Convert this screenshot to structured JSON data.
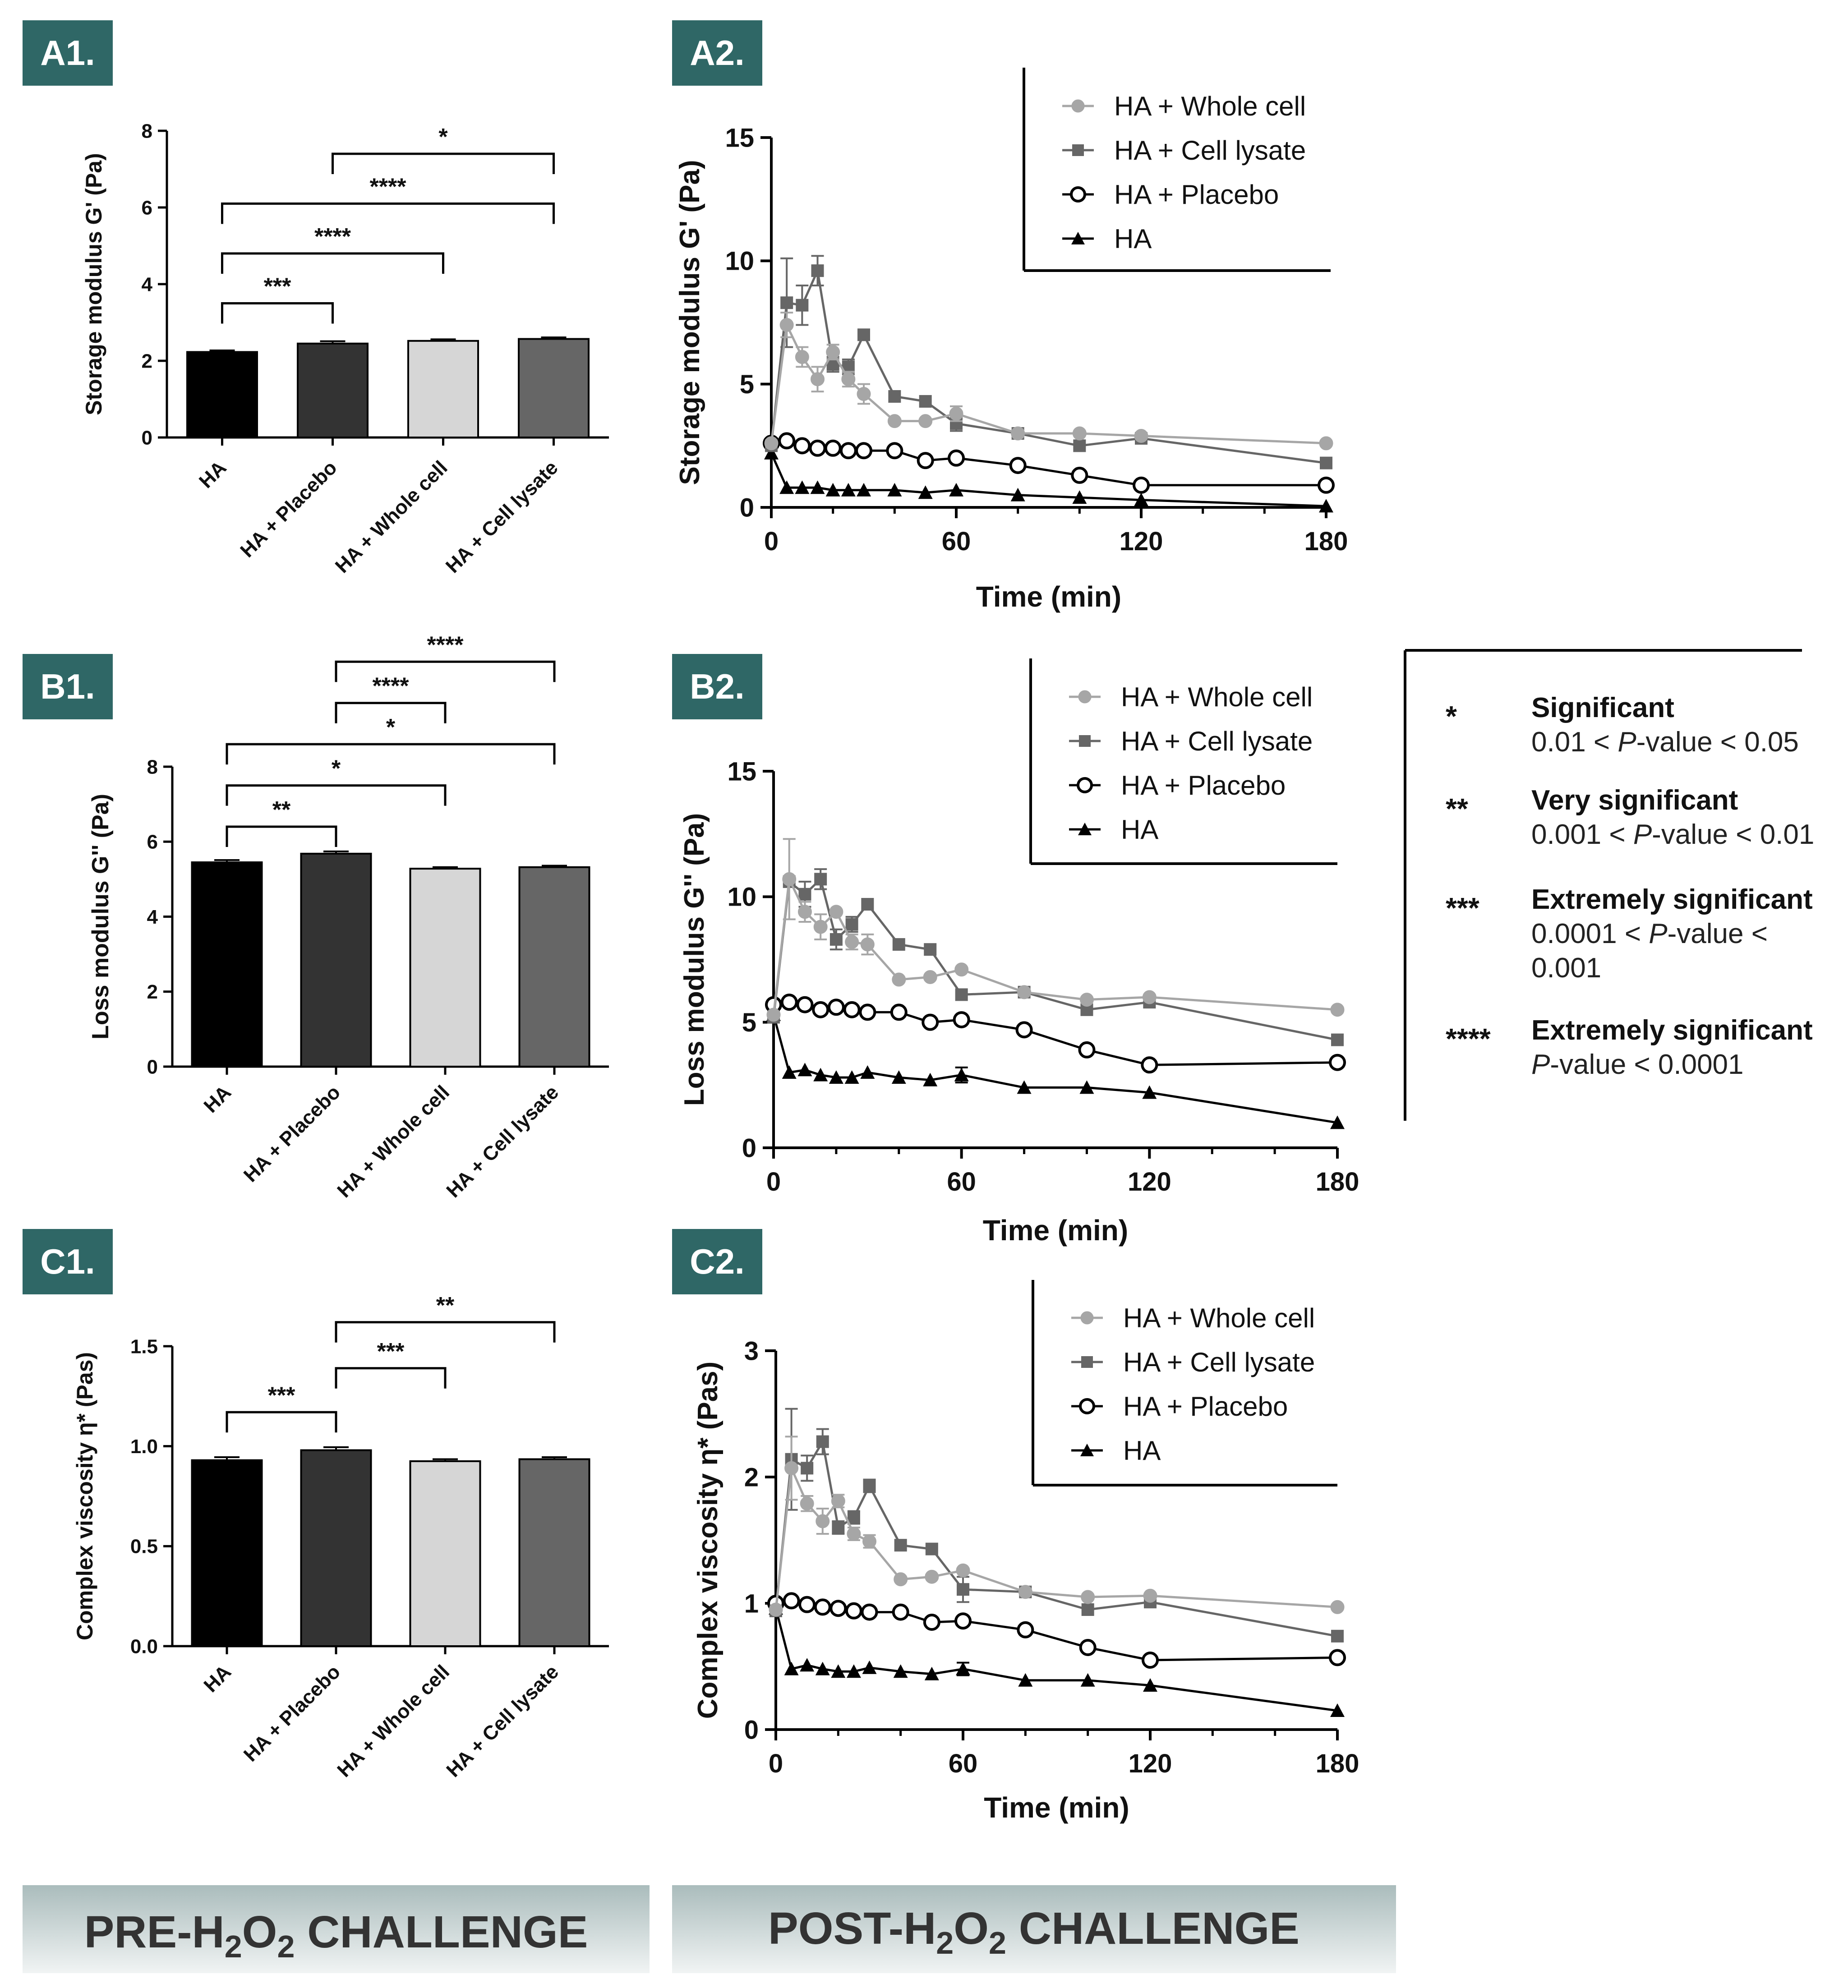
{
  "colors": {
    "panel_label_bg": "#2f6766",
    "bar_HA": "#000000",
    "bar_placebo": "#333333",
    "bar_whole_cell": "#d6d6d6",
    "bar_cell_lysate": "#666666",
    "line_whole_cell": "#a6a6a6",
    "line_cell_lysate": "#666666",
    "line_placebo": "#000000",
    "line_HA": "#000000",
    "banner_top": "#aabcbc",
    "banner_bottom": "#f1f4f4"
  },
  "panels": {
    "A1": "A1.",
    "A2": "A2.",
    "B1": "B1.",
    "B2": "B2.",
    "C1": "C1.",
    "C2": "C2."
  },
  "banners": {
    "pre": {
      "prefix": "PRE-H",
      "sub1": "2",
      "mid": "O",
      "sub2": "2",
      "suffix": " CHALLENGE"
    },
    "post": {
      "prefix": "POST-H",
      "sub1": "2",
      "mid": "O",
      "sub2": "2",
      "suffix": " CHALLENGE"
    }
  },
  "significance_key": [
    {
      "stars": "*",
      "title": "Significant",
      "lines": [
        [
          {
            "t": "0.01 < "
          },
          {
            "t": "P",
            "i": true
          },
          {
            "t": "-value < 0.05"
          }
        ]
      ]
    },
    {
      "stars": "**",
      "title": "Very significant",
      "lines": [
        [
          {
            "t": "0.001 < "
          },
          {
            "t": "P",
            "i": true
          },
          {
            "t": "-value < 0.01"
          }
        ]
      ]
    },
    {
      "stars": "***",
      "title": "Extremely significant",
      "lines": [
        [
          {
            "t": "0.0001 < "
          },
          {
            "t": "P",
            "i": true
          },
          {
            "t": "-value <"
          }
        ],
        [
          {
            "t": "0.001"
          }
        ]
      ]
    },
    {
      "stars": "****",
      "title": "Extremely significant",
      "lines": [
        [
          {
            "t": "P",
            "i": true
          },
          {
            "t": "-value < 0.0001"
          }
        ]
      ]
    }
  ],
  "chart_data": [
    {
      "id": "A1",
      "type": "bar",
      "ylabel": "Storage modulus G' (Pa)",
      "ylim": [
        0,
        8
      ],
      "yticks": [
        "0",
        "2",
        "4",
        "6",
        "8"
      ],
      "categories": [
        "HA",
        "HA + Placebo",
        "HA + Whole cell",
        "HA + Cell lysate"
      ],
      "values": [
        2.23,
        2.45,
        2.52,
        2.57
      ],
      "errors": [
        0.04,
        0.06,
        0.04,
        0.04
      ],
      "significance": [
        {
          "from": 1,
          "to": 3,
          "y": 7.4,
          "label": "*"
        },
        {
          "from": 0,
          "to": 3,
          "y": 6.1,
          "label": "****"
        },
        {
          "from": 0,
          "to": 2,
          "y": 4.8,
          "label": "****"
        },
        {
          "from": 0,
          "to": 1,
          "y": 3.5,
          "label": "***"
        }
      ]
    },
    {
      "id": "A2",
      "type": "line",
      "xlabel": "Time (min)",
      "ylabel": "Storage modulus G' (Pa)",
      "xlim": [
        0,
        180
      ],
      "ylim": [
        0,
        15
      ],
      "xticks": [
        "0",
        "60",
        "120",
        "180"
      ],
      "yticks": [
        "0",
        "5",
        "10",
        "15"
      ],
      "x": [
        0,
        5,
        10,
        15,
        20,
        25,
        30,
        40,
        50,
        60,
        80,
        100,
        120,
        180
      ],
      "series": [
        {
          "name": "HA + Whole cell",
          "marker": "circle-filled",
          "values": [
            2.6,
            7.4,
            6.1,
            5.2,
            6.3,
            5.2,
            4.6,
            3.5,
            3.5,
            3.8,
            3.0,
            3.0,
            2.9,
            2.6
          ],
          "errors": [
            0,
            0.5,
            0.4,
            0.5,
            0.3,
            0.3,
            0.4,
            0,
            0,
            0.3,
            0,
            0,
            0,
            0
          ]
        },
        {
          "name": "HA + Cell lysate",
          "marker": "square",
          "values": [
            2.5,
            8.3,
            8.2,
            9.6,
            5.8,
            5.7,
            7.0,
            4.5,
            4.3,
            3.4,
            3.0,
            2.5,
            2.8,
            1.8
          ],
          "errors": [
            0,
            1.8,
            0.8,
            0.6,
            0.3,
            0.3,
            0,
            0,
            0,
            0.3,
            0,
            0,
            0,
            0
          ]
        },
        {
          "name": "HA + Placebo",
          "marker": "circle-open",
          "values": [
            2.6,
            2.7,
            2.5,
            2.4,
            2.4,
            2.3,
            2.3,
            2.3,
            1.9,
            2.0,
            1.7,
            1.3,
            0.9,
            0.9
          ],
          "errors": [
            0,
            0,
            0,
            0,
            0,
            0,
            0,
            0,
            0,
            0,
            0,
            0,
            0,
            0
          ]
        },
        {
          "name": "HA",
          "marker": "triangle",
          "values": [
            2.2,
            0.8,
            0.8,
            0.8,
            0.7,
            0.7,
            0.7,
            0.7,
            0.6,
            0.7,
            0.5,
            0.4,
            0.3,
            0.05
          ],
          "errors": [
            0,
            0,
            0,
            0,
            0,
            0,
            0,
            0,
            0,
            0,
            0,
            0,
            0,
            0
          ]
        }
      ]
    },
    {
      "id": "B1",
      "type": "bar",
      "ylabel": "Loss modulus G'' (Pa)",
      "ylim": [
        0,
        8
      ],
      "yticks": [
        "0",
        "2",
        "4",
        "6",
        "8"
      ],
      "categories": [
        "HA",
        "HA + Placebo",
        "HA + Whole cell",
        "HA + Cell lysate"
      ],
      "values": [
        5.45,
        5.68,
        5.28,
        5.32
      ],
      "errors": [
        0.06,
        0.06,
        0.04,
        0.04
      ],
      "significance": [
        {
          "from": 1,
          "to": 3,
          "y": 10.8,
          "label": "****"
        },
        {
          "from": 1,
          "to": 2,
          "y": 9.7,
          "label": "****"
        },
        {
          "from": 0,
          "to": 3,
          "y": 8.6,
          "label": "*"
        },
        {
          "from": 0,
          "to": 2,
          "y": 7.5,
          "label": "*"
        },
        {
          "from": 0,
          "to": 1,
          "y": 6.4,
          "label": "**"
        }
      ]
    },
    {
      "id": "B2",
      "type": "line",
      "xlabel": "Time (min)",
      "ylabel": "Loss modulus G'' (Pa)",
      "xlim": [
        0,
        180
      ],
      "ylim": [
        0,
        15
      ],
      "xticks": [
        "0",
        "60",
        "120",
        "180"
      ],
      "yticks": [
        "0",
        "5",
        "10",
        "15"
      ],
      "x": [
        0,
        5,
        10,
        15,
        20,
        25,
        30,
        40,
        50,
        60,
        80,
        100,
        120,
        180
      ],
      "series": [
        {
          "name": "HA + Whole cell",
          "marker": "circle-filled",
          "values": [
            5.3,
            10.7,
            9.4,
            8.8,
            9.4,
            8.2,
            8.1,
            6.7,
            6.8,
            7.1,
            6.2,
            5.9,
            6.0,
            5.5
          ],
          "errors": [
            0,
            1.6,
            0.4,
            0.5,
            0,
            0.3,
            0.4,
            0,
            0,
            0,
            0,
            0,
            0,
            0
          ]
        },
        {
          "name": "HA + Cell lysate",
          "marker": "square",
          "values": [
            5.2,
            10.6,
            10.1,
            10.7,
            8.3,
            8.9,
            9.7,
            8.1,
            7.9,
            6.1,
            6.2,
            5.5,
            5.8,
            4.3
          ],
          "errors": [
            0,
            0,
            0.5,
            0.4,
            0.4,
            0.3,
            0,
            0,
            0,
            0,
            0,
            0,
            0,
            0
          ]
        },
        {
          "name": "HA + Placebo",
          "marker": "circle-open",
          "values": [
            5.7,
            5.8,
            5.7,
            5.5,
            5.6,
            5.5,
            5.4,
            5.4,
            5.0,
            5.1,
            4.7,
            3.9,
            3.3,
            3.4
          ],
          "errors": [
            0,
            0,
            0,
            0,
            0,
            0,
            0,
            0,
            0,
            0,
            0,
            0,
            0,
            0
          ]
        },
        {
          "name": "HA",
          "marker": "triangle",
          "values": [
            5.3,
            3.0,
            3.1,
            2.9,
            2.8,
            2.8,
            3.0,
            2.8,
            2.7,
            2.9,
            2.4,
            2.4,
            2.2,
            1.0
          ],
          "errors": [
            0,
            0,
            0,
            0,
            0,
            0,
            0,
            0,
            0,
            0.3,
            0,
            0,
            0,
            0
          ]
        }
      ]
    },
    {
      "id": "C1",
      "type": "bar",
      "ylabel": "Complex viscosity η* (Pas)",
      "ylim": [
        0,
        1.5
      ],
      "yticks": [
        "0.0",
        "0.5",
        "1.0",
        "1.5"
      ],
      "categories": [
        "HA",
        "HA + Placebo",
        "HA + Whole cell",
        "HA + Cell lysate"
      ],
      "values": [
        0.93,
        0.98,
        0.925,
        0.935
      ],
      "errors": [
        0.015,
        0.015,
        0.01,
        0.01
      ],
      "significance": [
        {
          "from": 1,
          "to": 3,
          "y": 1.62,
          "label": "**"
        },
        {
          "from": 1,
          "to": 2,
          "y": 1.39,
          "label": "***"
        },
        {
          "from": 0,
          "to": 1,
          "y": 1.17,
          "label": "***"
        }
      ]
    },
    {
      "id": "C2",
      "type": "line",
      "xlabel": "Time (min)",
      "ylabel": "Complex viscosity η* (Pas)",
      "xlim": [
        0,
        180
      ],
      "ylim": [
        0,
        3
      ],
      "xticks": [
        "0",
        "60",
        "120",
        "180"
      ],
      "yticks": [
        "0",
        "1",
        "2",
        "3"
      ],
      "x": [
        0,
        5,
        10,
        15,
        20,
        25,
        30,
        40,
        50,
        60,
        80,
        100,
        120,
        180
      ],
      "series": [
        {
          "name": "HA + Whole cell",
          "marker": "circle-filled",
          "values": [
            0.95,
            2.07,
            1.79,
            1.65,
            1.81,
            1.55,
            1.49,
            1.19,
            1.21,
            1.26,
            1.09,
            1.05,
            1.06,
            0.97
          ],
          "errors": [
            0,
            0.25,
            0.06,
            0.1,
            0.05,
            0.05,
            0.05,
            0,
            0,
            0,
            0,
            0,
            0,
            0
          ]
        },
        {
          "name": "HA + Cell lysate",
          "marker": "square",
          "values": [
            0.94,
            2.14,
            2.07,
            2.28,
            1.6,
            1.68,
            1.93,
            1.46,
            1.43,
            1.11,
            1.09,
            0.95,
            1.01,
            0.74
          ],
          "errors": [
            0,
            0.4,
            0.1,
            0.1,
            0.05,
            0.05,
            0.05,
            0,
            0,
            0.1,
            0,
            0,
            0,
            0
          ]
        },
        {
          "name": "HA + Placebo",
          "marker": "circle-open",
          "values": [
            1.0,
            1.02,
            0.99,
            0.97,
            0.96,
            0.94,
            0.93,
            0.93,
            0.85,
            0.86,
            0.79,
            0.65,
            0.55,
            0.57
          ],
          "errors": [
            0,
            0,
            0,
            0,
            0,
            0,
            0,
            0,
            0,
            0,
            0,
            0,
            0,
            0
          ]
        },
        {
          "name": "HA",
          "marker": "triangle",
          "values": [
            0.96,
            0.48,
            0.51,
            0.48,
            0.46,
            0.46,
            0.49,
            0.46,
            0.44,
            0.48,
            0.39,
            0.39,
            0.35,
            0.15
          ],
          "errors": [
            0,
            0,
            0,
            0,
            0,
            0,
            0,
            0,
            0,
            0.05,
            0,
            0,
            0,
            0
          ]
        }
      ]
    }
  ]
}
